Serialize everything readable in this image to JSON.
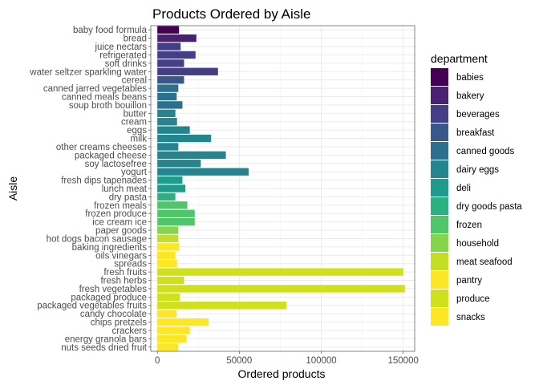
{
  "chart_data": {
    "type": "bar",
    "orientation": "horizontal",
    "title": "Products Ordered by Aisle",
    "xlabel": "Ordered products",
    "ylabel": "Aisle",
    "xlim": [
      -4000,
      157000
    ],
    "xticks": [
      0,
      50000,
      100000,
      150000
    ],
    "xtick_labels": [
      "0",
      "50000",
      "100000",
      "150000"
    ],
    "grid": true,
    "legend": {
      "title": "department",
      "placement": "right",
      "entries": [
        {
          "name": "babies",
          "color": "#440154"
        },
        {
          "name": "bakery",
          "color": "#482173"
        },
        {
          "name": "beverages",
          "color": "#433E85"
        },
        {
          "name": "breakfast",
          "color": "#38588C"
        },
        {
          "name": "canned goods",
          "color": "#2D708E"
        },
        {
          "name": "dairy eggs",
          "color": "#25858E"
        },
        {
          "name": "deli",
          "color": "#1E9B8A"
        },
        {
          "name": "dry goods pasta",
          "color": "#2BB07F"
        },
        {
          "name": "frozen",
          "color": "#51C56A"
        },
        {
          "name": "household",
          "color": "#85D54A"
        },
        {
          "name": "meat seafood",
          "color": "#C2DF23"
        },
        {
          "name": "pantry",
          "color": "#FDE725"
        }
      ]
    },
    "categories": [
      "baby food formula",
      "bread",
      "juice nectars",
      "refrigerated",
      "soft drinks",
      "water seltzer sparkling water",
      "cereal",
      "canned jarred vegetables",
      "canned meals beans",
      "soup broth bouillon",
      "butter",
      "cream",
      "eggs",
      "milk",
      "other creams cheeses",
      "packaged cheese",
      "soy lactosefree",
      "yogurt",
      "fresh dips tapenades",
      "lunch meat",
      "dry pasta",
      "frozen meals",
      "frozen produce",
      "ice cream ice",
      "paper goods",
      "hot dogs bacon sausage",
      "baking ingredients",
      "oils vinegars",
      "spreads",
      "fresh fruits",
      "fresh herbs",
      "fresh vegetables",
      "packaged produce",
      "packaged vegetables fruits",
      "candy chocolate",
      "chips pretzels",
      "crackers",
      "energy granola bars",
      "nuts seeds dried fruit"
    ],
    "values": [
      13200,
      23800,
      14200,
      23300,
      16300,
      37000,
      16300,
      12800,
      11800,
      15300,
      11000,
      12000,
      19800,
      32800,
      12800,
      41800,
      26500,
      55700,
      15300,
      17100,
      11000,
      18300,
      22800,
      22800,
      12800,
      12800,
      13300,
      11000,
      12000,
      150000,
      16300,
      151000,
      13800,
      78800,
      11800,
      31300,
      19800,
      17800,
      12800
    ],
    "departments": [
      "babies",
      "bakery",
      "beverages",
      "beverages",
      "beverages",
      "beverages",
      "breakfast",
      "canned goods",
      "canned goods",
      "canned goods",
      "dairy eggs",
      "dairy eggs",
      "dairy eggs",
      "dairy eggs",
      "dairy eggs",
      "dairy eggs",
      "dairy eggs",
      "dairy eggs",
      "deli",
      "deli",
      "dry goods pasta",
      "frozen",
      "frozen",
      "frozen",
      "household",
      "meat seafood",
      "pantry",
      "pantry",
      "pantry",
      "produce",
      "produce",
      "produce",
      "produce",
      "produce",
      "snacks",
      "snacks",
      "snacks",
      "snacks",
      "snacks"
    ],
    "extra_legend": [
      {
        "name": "produce",
        "color": "#CFE11C"
      },
      {
        "name": "snacks",
        "color": "#FDE725"
      }
    ]
  }
}
